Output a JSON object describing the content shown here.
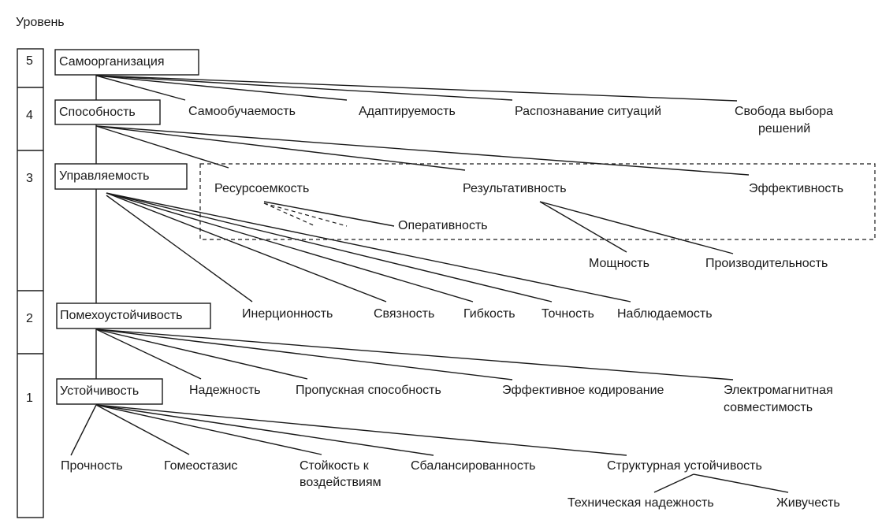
{
  "axis_label": "Уровень",
  "levels": [
    "5",
    "4",
    "3",
    "2",
    "1"
  ],
  "boxes": {
    "l5": "Самоорганизация",
    "l4": "Способность",
    "l3": "Управляемость",
    "l2": "Помехоустойчивость",
    "l1": "Устойчивость"
  },
  "level5_children": [
    "Самообучаемость",
    "Адаптируемость",
    "Распознавание ситуаций",
    "Свобода выбора",
    "решений"
  ],
  "level4_children": [
    "Ресурсоемкость",
    "Результативность",
    "Эффективность",
    "Оперативность"
  ],
  "result_children": [
    "Мощность",
    "Производительность"
  ],
  "level3_children": [
    "Инерционность",
    "Связность",
    "Гибкость",
    "Точность",
    "Наблюдаемость"
  ],
  "level2_children": [
    "Надежность",
    "Пропускная способность",
    "Эффективное кодирование",
    "Электромагнитная",
    "совместимость"
  ],
  "level1_children": [
    "Прочность",
    "Гомеостазис",
    "Стойкость к",
    "воздействиям",
    "Сбалансированность",
    "Структурная устойчивость"
  ],
  "structural_children": [
    "Техническая надежность",
    "Живучесть"
  ]
}
